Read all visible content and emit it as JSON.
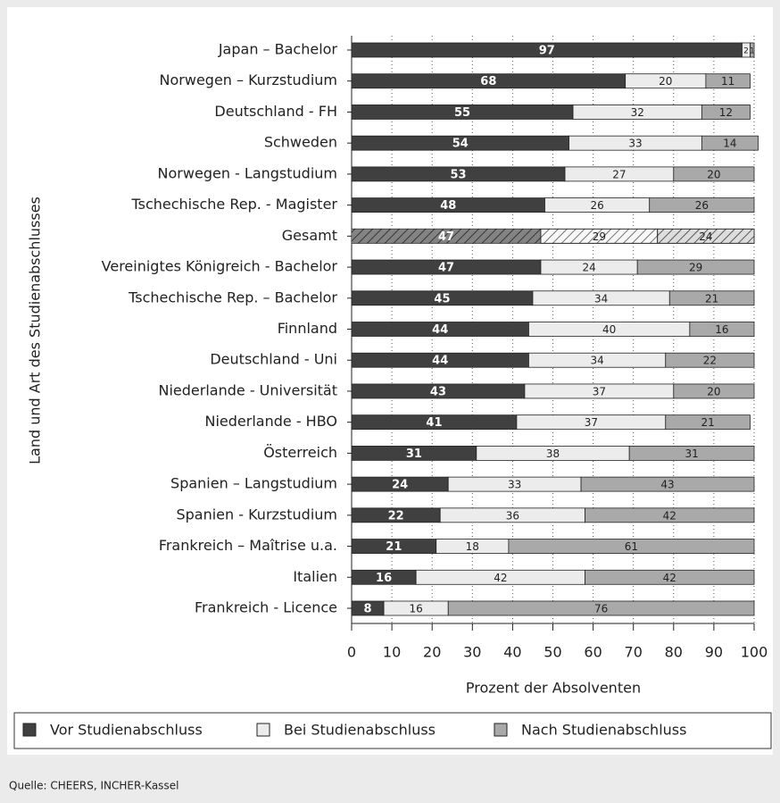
{
  "chart_data": {
    "type": "stacked-barh",
    "y_label": "Land und Art des Studienabschlusses",
    "x_label": "Prozent der Absolventen",
    "source": "Quelle: CHEERS, INCHER-Kassel",
    "categories": [
      "Japan – Bachelor",
      "Norwegen – Kurzstudium",
      "Deutschland - FH",
      "Schweden",
      "Norwegen - Langstudium",
      "Tschechische Rep. - Magister",
      "Gesamt",
      "Vereinigtes Königreich - Bachelor",
      "Tschechische Rep. – Bachelor",
      "Finnland",
      "Deutschland - Uni",
      "Niederlande - Universität",
      "Niederlande - HBO",
      "Österreich",
      "Spanien – Langstudium",
      "Spanien - Kurzstudium",
      "Frankreich – Maîtrise u.a.",
      "Italien",
      "Frankreich - Licence"
    ],
    "series": [
      {
        "name": "Vor Studienabschluss",
        "color": "#404040",
        "values": [
          97,
          68,
          55,
          54,
          53,
          48,
          47,
          47,
          45,
          44,
          44,
          43,
          41,
          31,
          24,
          22,
          21,
          16,
          8
        ]
      },
      {
        "name": "Bei Studienabschluss",
        "color": "#ececec",
        "values": [
          2,
          20,
          32,
          33,
          27,
          26,
          29,
          24,
          34,
          40,
          34,
          37,
          37,
          38,
          33,
          36,
          18,
          42,
          16
        ]
      },
      {
        "name": "Nach Studienabschluss",
        "color": "#a9a9a9",
        "values": [
          1,
          11,
          12,
          14,
          20,
          26,
          24,
          29,
          21,
          16,
          22,
          20,
          21,
          31,
          43,
          42,
          61,
          42,
          76
        ]
      }
    ],
    "hatched_category": "Gesamt",
    "xlim": [
      0,
      100
    ],
    "xticks": [
      0,
      10,
      20,
      30,
      40,
      50,
      60,
      70,
      80,
      90,
      100
    ],
    "grid": true,
    "legend": "bottom"
  }
}
